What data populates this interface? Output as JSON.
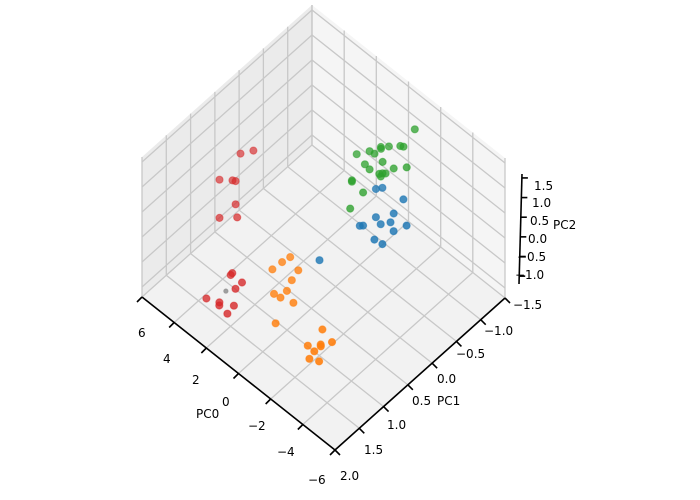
{
  "chart_data": {
    "type": "scatter3d",
    "title": "",
    "axes": {
      "x": {
        "label": "PC0",
        "ticks": [
          "6",
          "4",
          "2",
          "0",
          "−2",
          "−4",
          "−6"
        ]
      },
      "y": {
        "label": "PC1",
        "ticks": [
          "−1.5",
          "−1.0",
          "−0.5",
          "0.0",
          "0.5",
          "1.0",
          "1.5",
          "2.0"
        ]
      },
      "z": {
        "label": "PC2",
        "ticks": [
          "1.5",
          "1.0",
          "0.5",
          "0.0",
          "−0.5",
          "−1.0"
        ]
      }
    },
    "grid": true,
    "series": [
      {
        "color": "#1f77b4",
        "points": [
          [
            -1.6,
            -0.3,
            0.9
          ],
          [
            -1.9,
            -0.2,
            0.5
          ],
          [
            -2.2,
            -0.4,
            0.3
          ],
          [
            -1.4,
            -0.5,
            0.7
          ],
          [
            -2.5,
            -0.1,
            0.6
          ],
          [
            -1.8,
            -0.6,
            0.2
          ],
          [
            -2.0,
            -0.3,
            -0.1
          ],
          [
            -2.7,
            -0.5,
            0.8
          ],
          [
            -1.5,
            0.0,
            0.4
          ],
          [
            -2.3,
            -0.7,
            0.0
          ],
          [
            -3.0,
            -0.2,
            0.5
          ],
          [
            -1.2,
            -0.4,
            -0.3
          ],
          [
            0.4,
            0.2,
            -0.6
          ],
          [
            -0.5,
            -0.4,
            -0.2
          ]
        ]
      },
      {
        "color": "#ff7f0e",
        "points": [
          [
            -3.0,
            1.3,
            -0.5
          ],
          [
            -3.3,
            1.4,
            -0.3
          ],
          [
            -2.9,
            1.5,
            -0.6
          ],
          [
            -3.4,
            1.2,
            -0.4
          ],
          [
            -3.1,
            1.6,
            -0.2
          ],
          [
            -2.6,
            1.3,
            -0.7
          ],
          [
            -3.5,
            1.5,
            -0.5
          ],
          [
            -2.8,
            1.2,
            -0.3
          ],
          [
            -1.6,
            1.4,
            0.1
          ],
          [
            -1.0,
            1.6,
            0.3
          ],
          [
            -1.3,
            1.2,
            0.5
          ],
          [
            -0.8,
            1.4,
            0.0
          ],
          [
            -1.5,
            1.5,
            0.4
          ],
          [
            -1.1,
            1.3,
            0.8
          ],
          [
            -0.6,
            1.5,
            0.6
          ],
          [
            -1.4,
            1.7,
            -0.1
          ],
          [
            -0.9,
            1.2,
            0.2
          ],
          [
            -1.2,
            1.5,
            0.9
          ]
        ]
      },
      {
        "color": "#2ca02c",
        "points": [
          [
            -1.2,
            -0.7,
            1.3
          ],
          [
            -1.5,
            -0.9,
            1.2
          ],
          [
            -1.8,
            -0.6,
            1.1
          ],
          [
            -1.0,
            -1.0,
            1.0
          ],
          [
            -1.3,
            -0.5,
            0.9
          ],
          [
            -2.0,
            -0.8,
            1.0
          ],
          [
            -1.6,
            -1.1,
            1.4
          ],
          [
            -1.9,
            -0.4,
            1.2
          ],
          [
            -0.3,
            -0.6,
            0.7
          ],
          [
            -0.5,
            -0.8,
            0.5
          ],
          [
            0.0,
            -0.7,
            0.9
          ],
          [
            0.3,
            -0.9,
            0.6
          ],
          [
            -0.2,
            -0.5,
            0.3
          ],
          [
            0.5,
            -0.6,
            0.8
          ],
          [
            0.1,
            -1.0,
            0.4
          ],
          [
            -0.4,
            -0.8,
            1.0
          ],
          [
            0.8,
            -0.6,
            0.2
          ],
          [
            0.2,
            -0.4,
            0.5
          ],
          [
            -0.6,
            -0.7,
            0.6
          ],
          [
            0.0,
            -0.3,
            0.1
          ],
          [
            -0.1,
            -0.9,
            0.8
          ],
          [
            0.6,
            -0.8,
            0.4
          ]
        ]
      },
      {
        "color": "#d62728",
        "points": [
          [
            3.5,
            0.9,
            0.8
          ],
          [
            3.8,
            0.7,
            1.1
          ],
          [
            3.2,
            1.0,
            0.5
          ],
          [
            4.0,
            0.8,
            0.6
          ],
          [
            3.6,
            1.2,
            0.3
          ],
          [
            3.3,
            0.6,
            1.2
          ],
          [
            3.9,
            1.1,
            0.9
          ],
          [
            3.4,
            0.9,
            0.1
          ],
          [
            2.3,
            1.3,
            -0.7
          ],
          [
            2.5,
            1.1,
            -0.8
          ],
          [
            2.1,
            1.4,
            -0.9
          ],
          [
            2.8,
            1.2,
            -0.6
          ],
          [
            2.4,
            1.6,
            -0.8
          ],
          [
            2.7,
            1.5,
            -0.9
          ],
          [
            2.9,
            1.7,
            -0.7
          ],
          [
            2.2,
            1.5,
            -1.0
          ],
          [
            2.6,
            1.3,
            -0.5
          ]
        ]
      },
      {
        "color": "#888888",
        "points": [
          [
            2.9,
            1.3,
            -0.9
          ]
        ]
      }
    ]
  }
}
